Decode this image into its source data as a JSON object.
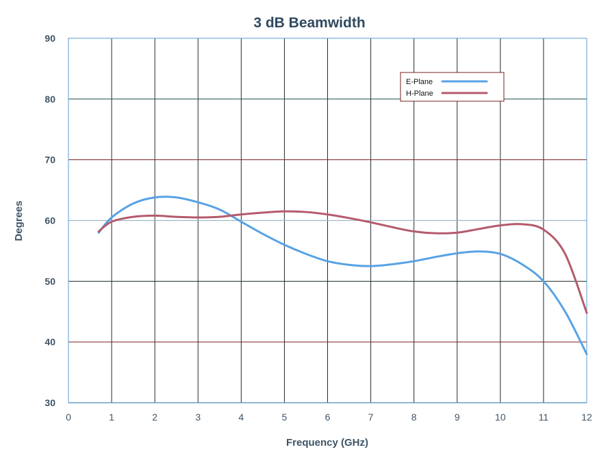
{
  "chart_data": {
    "type": "line",
    "title": "3 dB Beamwidth",
    "xlabel": "Frequency (GHz)",
    "ylabel": "Degrees",
    "xlim": [
      0,
      12
    ],
    "ylim": [
      30,
      90
    ],
    "xticks": [
      0,
      1,
      2,
      3,
      4,
      5,
      6,
      7,
      8,
      9,
      10,
      11,
      12
    ],
    "yticks": [
      30,
      40,
      50,
      60,
      70,
      80,
      90
    ],
    "grid": true,
    "legend_position": "top-right",
    "colors": {
      "title": "#30495F",
      "axis_text": "#3E5366",
      "plot_border": "#5A9BD3",
      "gridline_vertical": "#1F2B2B",
      "gridline_dark_red": "#7B1E1E",
      "gridline_dark_teal": "#1F4A4A",
      "gridline_light": "#9FB8C1",
      "legend_border": "#7A1F1F"
    },
    "series": [
      {
        "name": "E-Plane",
        "color": "#57A2E5",
        "x": [
          0.7,
          1.0,
          1.5,
          2.0,
          2.5,
          3.0,
          3.5,
          4.0,
          4.5,
          5.0,
          5.5,
          6.0,
          6.5,
          7.0,
          7.5,
          8.0,
          8.5,
          9.0,
          9.5,
          10.0,
          10.5,
          11.0,
          11.5,
          12.0
        ],
        "y": [
          58.0,
          60.5,
          62.8,
          63.8,
          63.8,
          63.0,
          61.8,
          59.8,
          57.8,
          56.0,
          54.5,
          53.3,
          52.7,
          52.5,
          52.8,
          53.3,
          54.0,
          54.6,
          54.9,
          54.5,
          52.8,
          50.0,
          45.0,
          38.0
        ]
      },
      {
        "name": "H-Plane",
        "color": "#B45A6B",
        "x": [
          0.7,
          1.0,
          1.5,
          2.0,
          2.5,
          3.0,
          3.5,
          4.0,
          4.5,
          5.0,
          5.5,
          6.0,
          6.5,
          7.0,
          7.5,
          8.0,
          8.5,
          9.0,
          9.5,
          10.0,
          10.5,
          11.0,
          11.5,
          12.0
        ],
        "y": [
          58.2,
          59.8,
          60.6,
          60.8,
          60.6,
          60.5,
          60.6,
          61.0,
          61.3,
          61.5,
          61.4,
          61.0,
          60.4,
          59.7,
          58.9,
          58.2,
          57.9,
          58.0,
          58.6,
          59.2,
          59.4,
          58.5,
          54.5,
          44.8
        ]
      }
    ]
  }
}
